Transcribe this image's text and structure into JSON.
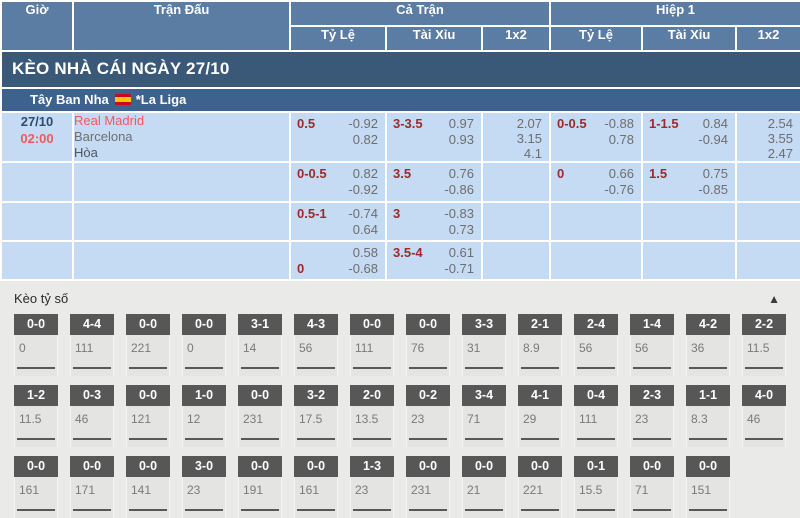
{
  "colors": {
    "header_blue": "#5b7ca3",
    "title_navy": "#3a5878",
    "league_blue": "#3e628e",
    "cell_blue": "#c5daf3",
    "label_maroon": "#9c2a2a",
    "value_gray": "#6e6e6e",
    "highlight_red": "#f05a5a",
    "score_box_gray": "#575757",
    "section_bg": "#eaeae8"
  },
  "table": {
    "headers": {
      "time": "Giờ",
      "match": "Trận Đấu",
      "full": "Cả Trận",
      "half": "Hiệp 1",
      "hdp": "Tỷ Lệ",
      "ou": "Tài Xỉu",
      "x12": "1x2"
    },
    "title": "KÈO NHÀ CÁI NGÀY 27/10",
    "league": {
      "country": "Tây Ban Nha",
      "flag_icon": "spain-flag",
      "name": "*La Liga"
    },
    "rows": [
      {
        "date": "27/10",
        "time": "02:00",
        "teams": {
          "home": "Real Madrid",
          "away": "Barcelona",
          "draw": "Hòa"
        },
        "ft_hdp": {
          "label": "0.5",
          "v1": "-0.92",
          "v2": "0.82"
        },
        "ft_ou": {
          "label": "3-3.5",
          "v1": "0.97",
          "v2": "0.93"
        },
        "ft_1x2": [
          "2.07",
          "3.15",
          "4.1"
        ],
        "h1_hdp": {
          "label": "0-0.5",
          "v1": "-0.88",
          "v2": "0.78"
        },
        "h1_ou": {
          "label": "1-1.5",
          "v1": "0.84",
          "v2": "-0.94"
        },
        "h1_1x2": [
          "2.54",
          "3.55",
          "2.47"
        ]
      },
      {
        "ft_hdp": {
          "label": "0-0.5",
          "v1": "0.82",
          "v2": "-0.92"
        },
        "ft_ou": {
          "label": "3.5",
          "v1": "0.76",
          "v2": "-0.86"
        },
        "h1_hdp": {
          "label": "0",
          "v1": "0.66",
          "v2": "-0.76"
        },
        "h1_ou": {
          "label": "1.5",
          "v1": "0.75",
          "v2": "-0.85"
        }
      },
      {
        "ft_hdp": {
          "label": "0.5-1",
          "v1": "-0.74",
          "v2": "0.64"
        },
        "ft_ou": {
          "label": "3",
          "v1": "-0.83",
          "v2": "0.73"
        }
      },
      {
        "ft_hdp": {
          "label": "0",
          "v1": "0.58",
          "v2": "-0.68"
        },
        "ft_ou": {
          "label": "3.5-4",
          "v1": "0.61",
          "v2": "-0.71"
        }
      }
    ]
  },
  "score_section": {
    "title": "Kèo tỷ số",
    "collapse_icon": "▲",
    "rows": [
      [
        {
          "s": "0-0",
          "v": "0"
        },
        {
          "s": "4-4",
          "v": "111"
        },
        {
          "s": "0-0",
          "v": "221"
        },
        {
          "s": "0-0",
          "v": "0"
        },
        {
          "s": "3-1",
          "v": "14"
        },
        {
          "s": "4-3",
          "v": "56"
        },
        {
          "s": "0-0",
          "v": "111"
        },
        {
          "s": "0-0",
          "v": "76"
        },
        {
          "s": "3-3",
          "v": "31"
        },
        {
          "s": "2-1",
          "v": "8.9"
        },
        {
          "s": "2-4",
          "v": "56"
        },
        {
          "s": "1-4",
          "v": "56"
        },
        {
          "s": "4-2",
          "v": "36"
        },
        {
          "s": "2-2",
          "v": "11.5"
        }
      ],
      [
        {
          "s": "1-2",
          "v": "11.5"
        },
        {
          "s": "0-3",
          "v": "46"
        },
        {
          "s": "0-0",
          "v": "121"
        },
        {
          "s": "1-0",
          "v": "12"
        },
        {
          "s": "0-0",
          "v": "231"
        },
        {
          "s": "3-2",
          "v": "17.5"
        },
        {
          "s": "2-0",
          "v": "13.5"
        },
        {
          "s": "0-2",
          "v": "23"
        },
        {
          "s": "3-4",
          "v": "71"
        },
        {
          "s": "4-1",
          "v": "29"
        },
        {
          "s": "0-4",
          "v": "111"
        },
        {
          "s": "2-3",
          "v": "23"
        },
        {
          "s": "1-1",
          "v": "8.3"
        },
        {
          "s": "4-0",
          "v": "46"
        }
      ],
      [
        {
          "s": "0-0",
          "v": "161"
        },
        {
          "s": "0-0",
          "v": "171"
        },
        {
          "s": "0-0",
          "v": "141"
        },
        {
          "s": "3-0",
          "v": "23"
        },
        {
          "s": "0-0",
          "v": "191"
        },
        {
          "s": "0-0",
          "v": "161"
        },
        {
          "s": "1-3",
          "v": "23"
        },
        {
          "s": "0-0",
          "v": "231"
        },
        {
          "s": "0-0",
          "v": "21"
        },
        {
          "s": "0-0",
          "v": "221"
        },
        {
          "s": "0-1",
          "v": "15.5"
        },
        {
          "s": "0-0",
          "v": "71"
        },
        {
          "s": "0-0",
          "v": "151"
        }
      ]
    ]
  }
}
